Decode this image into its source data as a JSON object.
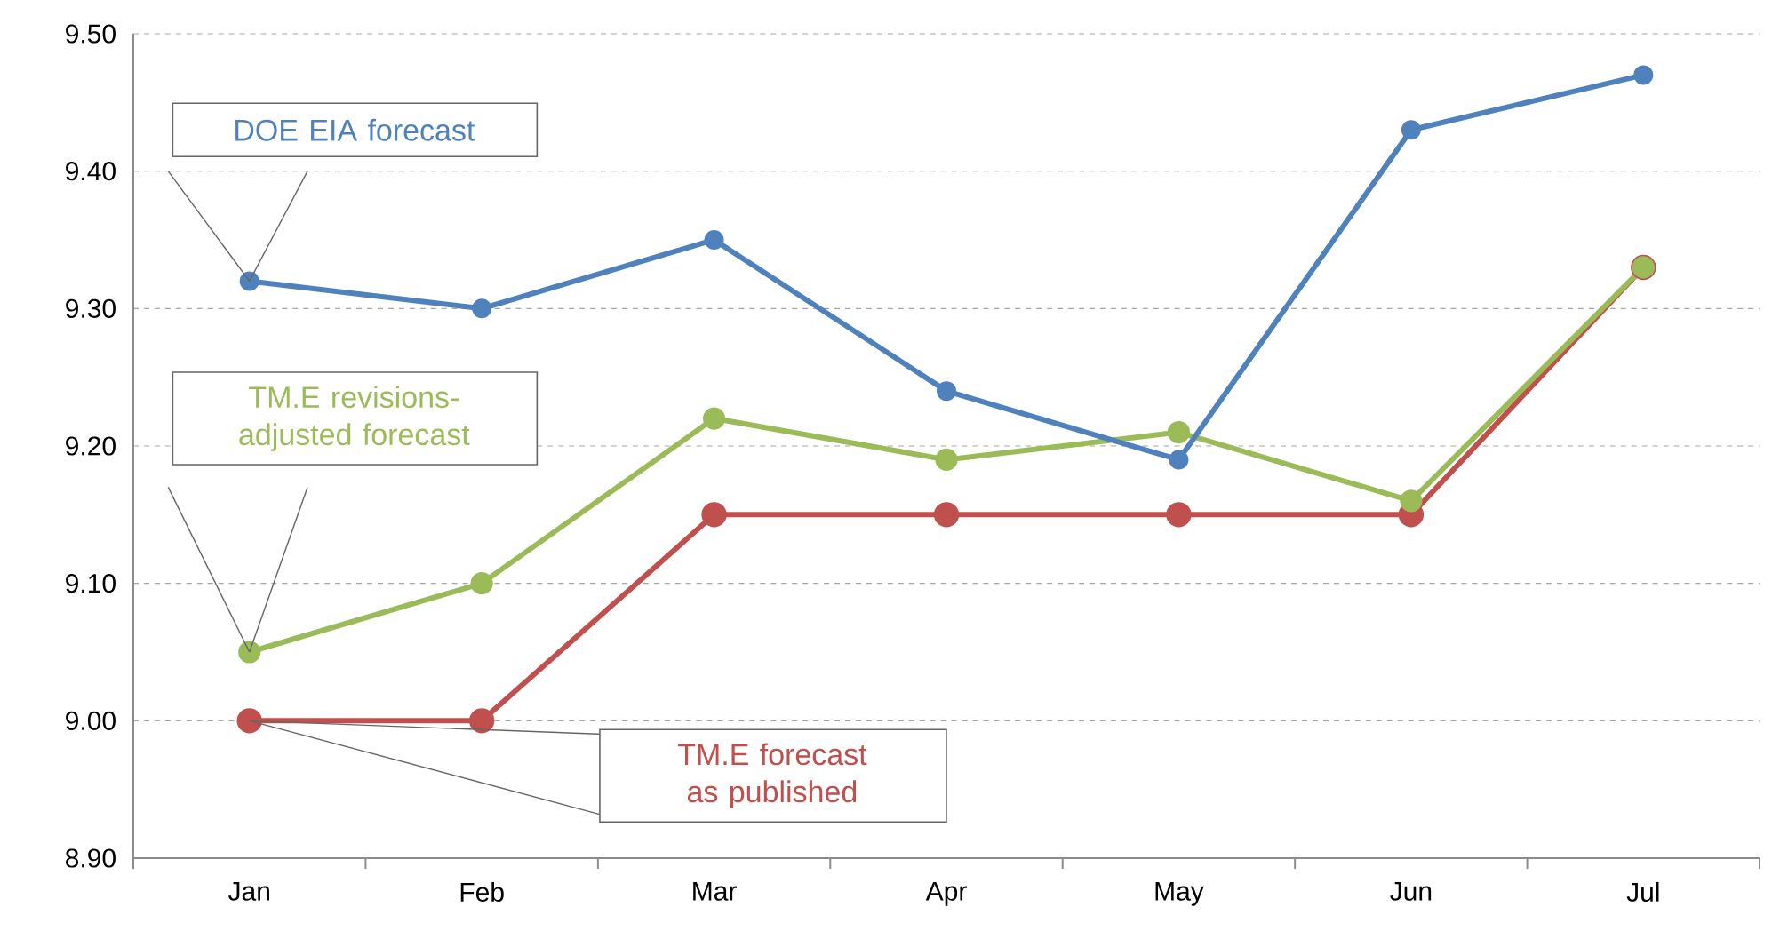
{
  "chart_data": {
    "type": "line",
    "categories": [
      "Jan",
      "Feb",
      "Mar",
      "Apr",
      "May",
      "Jun",
      "Jul"
    ],
    "series": [
      {
        "name": "DOE EIA forecast",
        "color": "#4f81bd",
        "values": [
          9.32,
          9.3,
          9.35,
          9.24,
          9.19,
          9.43,
          9.47
        ]
      },
      {
        "name": "TM.E revisions-adjusted forecast",
        "color": "#9bbb59",
        "values": [
          9.05,
          9.1,
          9.22,
          9.19,
          9.21,
          9.16,
          9.33
        ]
      },
      {
        "name": "TM.E forecast as published",
        "color": "#c0504d",
        "values": [
          9.0,
          9.0,
          9.15,
          9.15,
          9.15,
          9.15,
          9.33
        ]
      }
    ],
    "ylim": [
      8.9,
      9.5
    ],
    "yticks": [
      {
        "value": 8.9,
        "label": "8.90"
      },
      {
        "value": 9.0,
        "label": "9.00"
      },
      {
        "value": 9.1,
        "label": "9.10"
      },
      {
        "value": 9.2,
        "label": "9.20"
      },
      {
        "value": 9.3,
        "label": "9.30"
      },
      {
        "value": 9.4,
        "label": "9.40"
      },
      {
        "value": 9.5,
        "label": "9.50"
      }
    ],
    "grid": "y",
    "legend": false,
    "marker": "circle",
    "line_style": "solid"
  }
}
